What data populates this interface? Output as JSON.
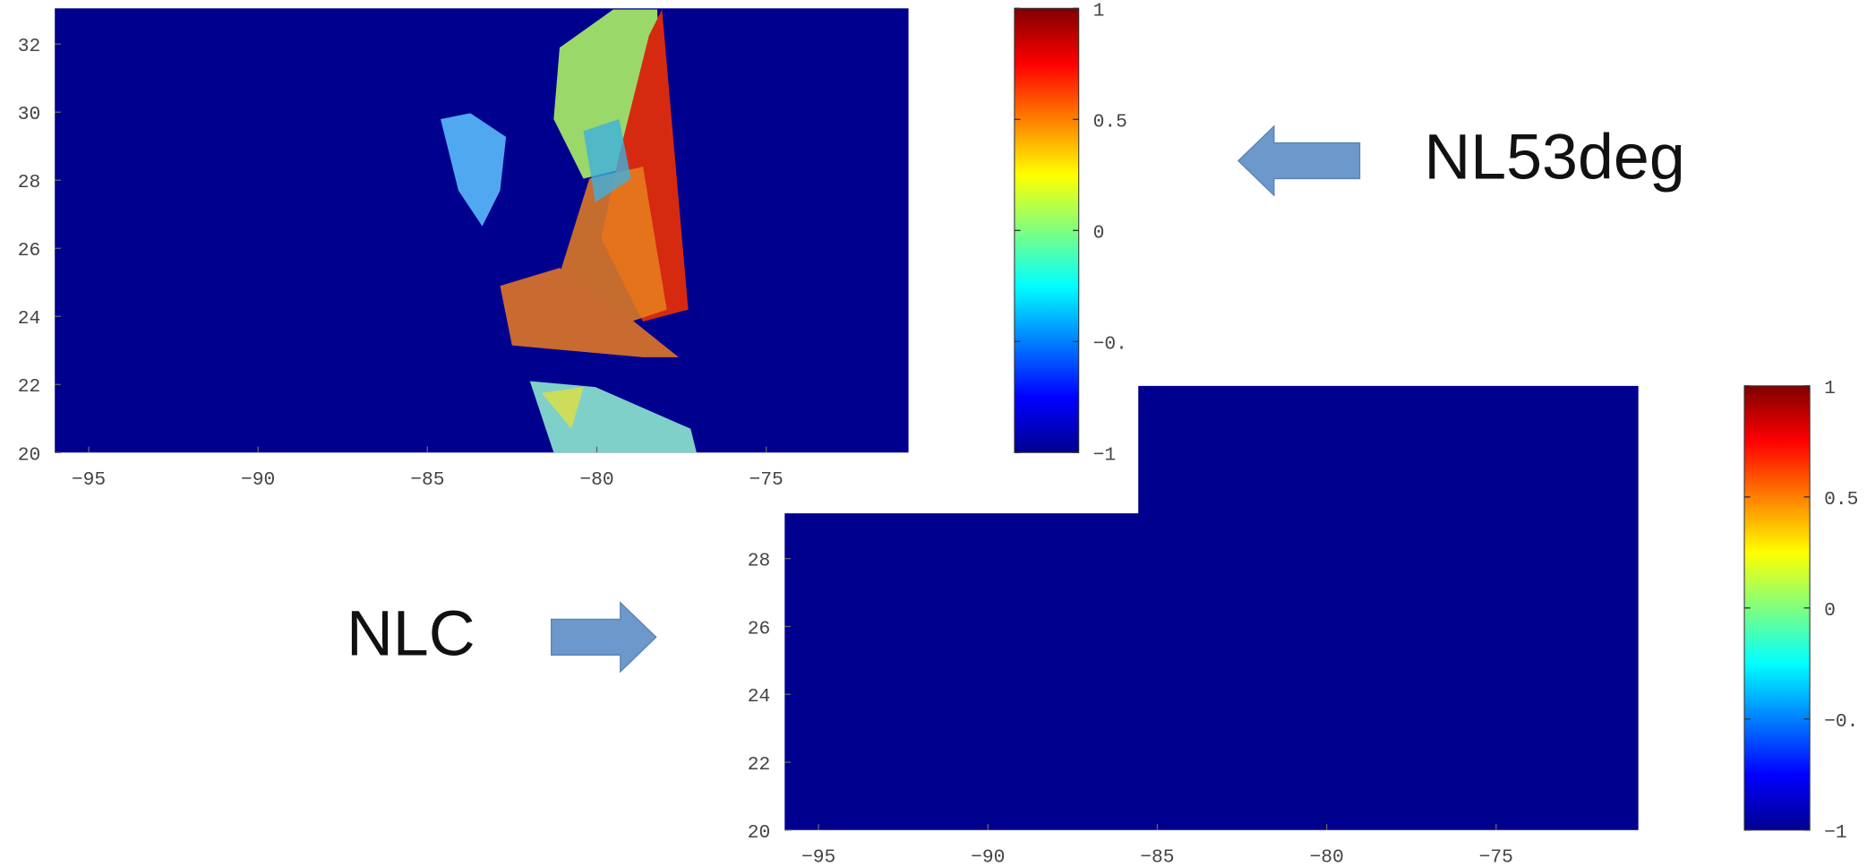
{
  "chart_data": [
    {
      "type": "heatmap",
      "xlim": [
        -96,
        -70.8
      ],
      "ylim": [
        20,
        33.05
      ],
      "xticks": [
        -95,
        -90,
        -85,
        -80,
        -75
      ],
      "yticks": [
        20,
        22,
        24,
        26,
        28,
        30,
        32
      ],
      "colorbar": {
        "lim": [
          -1,
          1
        ],
        "ticks": [
          1,
          0.5,
          0,
          {
            "value": -0.5,
            "label": "-0."
          },
          -1
        ]
      }
    },
    {
      "type": "heatmap",
      "xlim": [
        -96,
        -70.8
      ],
      "ylim": [
        20,
        33.09
      ],
      "xticks": [
        -95,
        -90,
        -85,
        -80,
        -75
      ],
      "yticks": [
        20,
        22,
        24,
        26,
        28
      ],
      "colorbar": {
        "lim": [
          -1,
          1
        ],
        "ticks": [
          1,
          0.5,
          0,
          {
            "value": -0.5,
            "label": "-0."
          },
          -1
        ]
      }
    }
  ],
  "labels": {
    "top": "NL53deg",
    "bottom": "NLC"
  }
}
